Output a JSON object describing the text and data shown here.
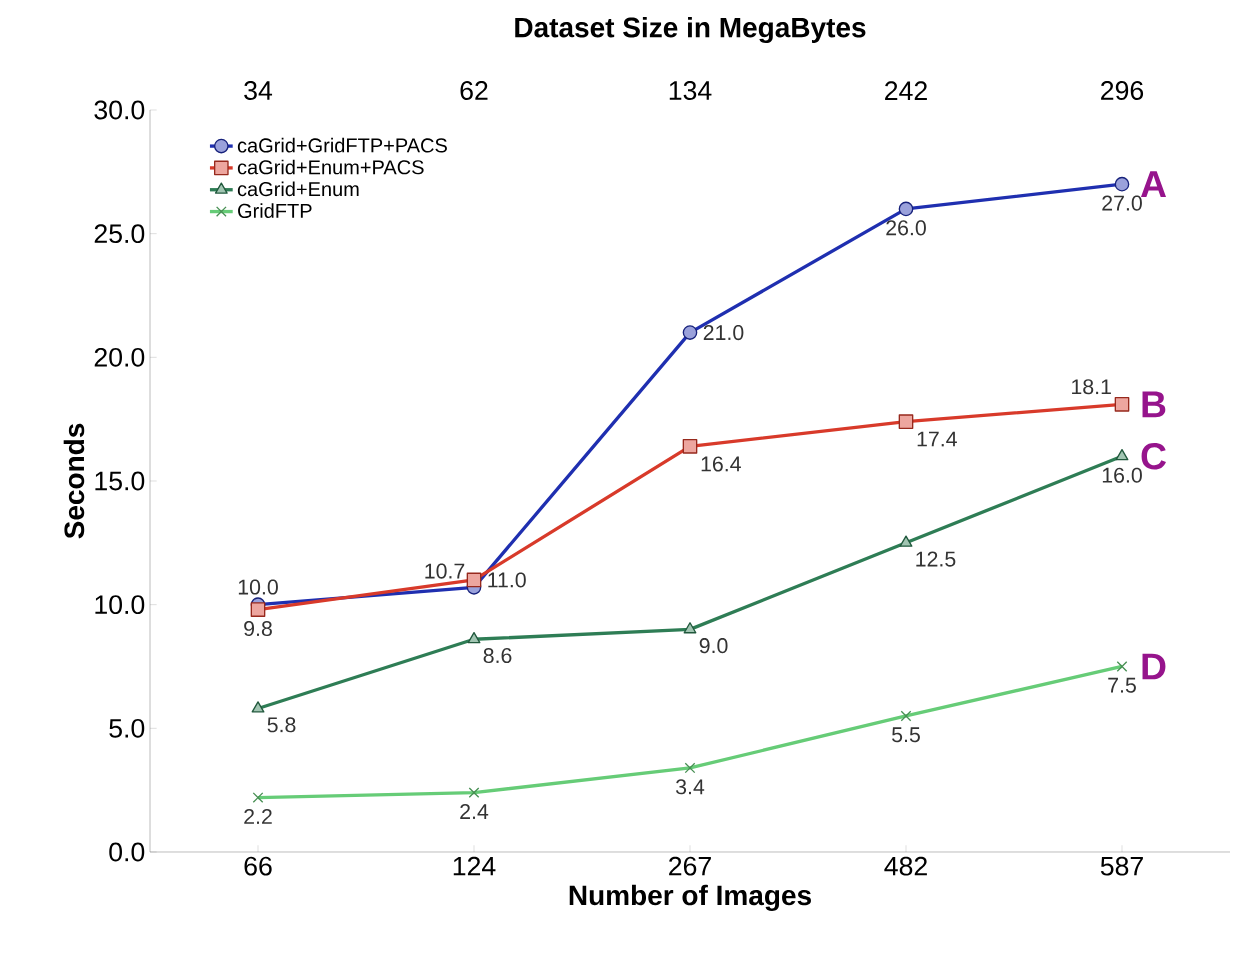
{
  "chart_data": {
    "type": "line",
    "xlabel": "Number of Images",
    "ylabel": "Seconds",
    "x2label": "Dataset Size in MegaBytes",
    "categories": [
      "66",
      "124",
      "267",
      "482",
      "587"
    ],
    "ylim": [
      0,
      30
    ],
    "yticks": [
      {
        "value": 0,
        "label": "0.0"
      },
      {
        "value": 5,
        "label": "5.0"
      },
      {
        "value": 10,
        "label": "10.0"
      },
      {
        "value": 15,
        "label": "15.0"
      },
      {
        "value": 20,
        "label": "20.0"
      },
      {
        "value": 25,
        "label": "25.0"
      },
      {
        "value": 30,
        "label": "30.0"
      }
    ],
    "legend": "top left",
    "grid": false,
    "series": [
      {
        "name": "caGrid+GridFTP+PACS",
        "color": "#1f2fb0",
        "marker": "circle",
        "values": [
          10.0,
          10.7,
          21.0,
          26.0,
          27.0
        ],
        "value_labels": [
          "10.0",
          "10.7",
          "21.0",
          "26.0",
          "27.0"
        ]
      },
      {
        "name": "caGrid+Enum+PACS",
        "color": "#d83a2a",
        "marker": "square",
        "values": [
          9.8,
          11.0,
          16.4,
          17.4,
          18.1
        ],
        "value_labels": [
          "9.8",
          "11.0",
          "16.4",
          "17.4",
          "18.1"
        ]
      },
      {
        "name": "caGrid+Enum",
        "color": "#2e7d55",
        "marker": "triangle",
        "values": [
          5.8,
          8.6,
          9.0,
          12.5,
          16.0
        ],
        "value_labels": [
          "5.8",
          "8.6",
          "9.0",
          "12.5",
          "16.0"
        ]
      },
      {
        "name": "GridFTP",
        "color": "#66cc77",
        "marker": "cross",
        "values": [
          2.2,
          2.4,
          3.4,
          5.5,
          7.5
        ],
        "value_labels": [
          "2.2",
          "2.4",
          "3.4",
          "5.5",
          "7.5"
        ]
      }
    ],
    "annotations": [
      {
        "text": "A",
        "x": "587",
        "y": 27.0
      },
      {
        "text": "B",
        "x": "587",
        "y": 18.1
      },
      {
        "text": "C",
        "x": "587",
        "y": 16.0
      },
      {
        "text": "D",
        "x": "587",
        "y": 7.5
      },
      "34",
      "62",
      "134",
      "242",
      "296"
    ]
  }
}
